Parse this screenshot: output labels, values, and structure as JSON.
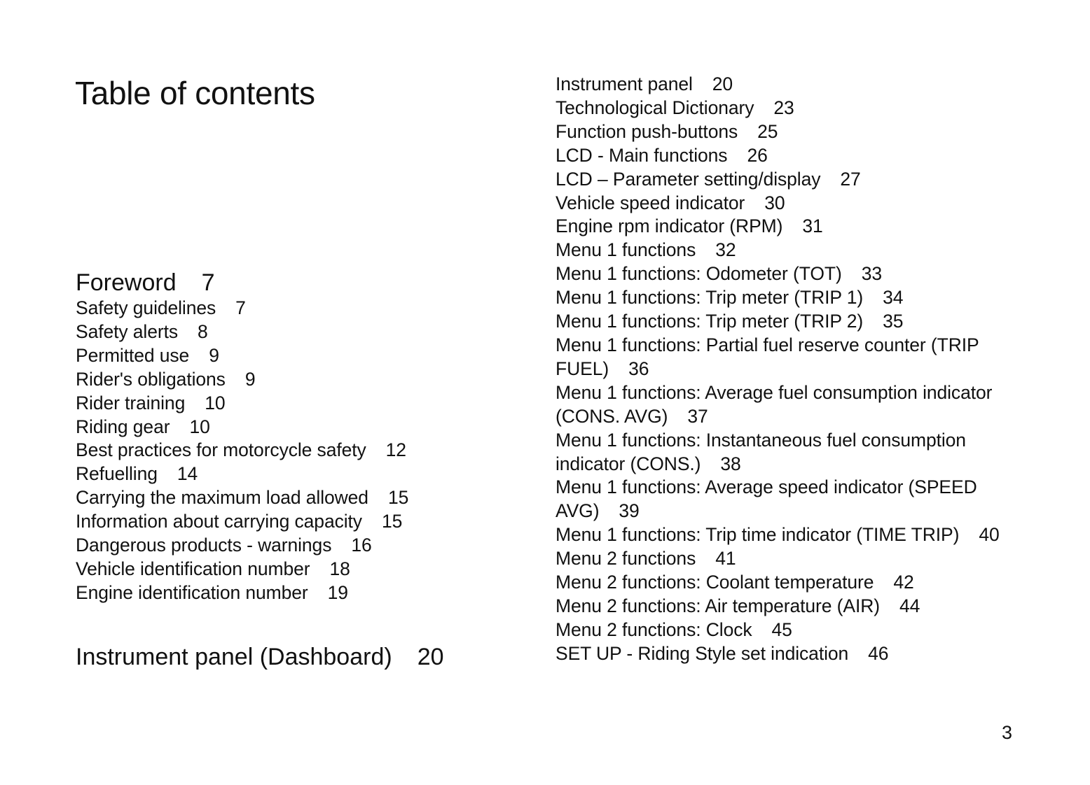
{
  "title": "Table of contents",
  "left": {
    "section1": {
      "title": "Foreword",
      "page": "7"
    },
    "entries": [
      {
        "title": "Safety guidelines",
        "page": "7"
      },
      {
        "title": "Safety alerts",
        "page": "8"
      },
      {
        "title": "Permitted use",
        "page": "9"
      },
      {
        "title": "Rider's obligations",
        "page": "9"
      },
      {
        "title": "Rider training",
        "page": "10"
      },
      {
        "title": "Riding gear",
        "page": "10"
      },
      {
        "title": "Best practices for motorcycle safety",
        "page": "12"
      },
      {
        "title": "Refuelling",
        "page": "14"
      },
      {
        "title": "Carrying the maximum load allowed",
        "page": "15"
      },
      {
        "title": "Information about carrying capacity",
        "page": "15"
      },
      {
        "title": "Dangerous products - warnings",
        "page": "16"
      },
      {
        "title": "Vehicle identification number",
        "page": "18"
      },
      {
        "title": "Engine identification number",
        "page": "19"
      }
    ],
    "section2": {
      "title": "Instrument panel (Dashboard)",
      "page": "20"
    }
  },
  "right": {
    "entries": [
      {
        "title": "Instrument panel",
        "page": "20"
      },
      {
        "title": "Technological Dictionary",
        "page": "23"
      },
      {
        "title": "Function push-buttons",
        "page": "25"
      },
      {
        "title": "LCD - Main functions",
        "page": "26"
      },
      {
        "title": "LCD – Parameter setting/display",
        "page": "27"
      },
      {
        "title": "Vehicle speed indicator",
        "page": "30"
      },
      {
        "title": "Engine rpm indicator (RPM)",
        "page": "31"
      },
      {
        "title": "Menu 1 functions",
        "page": "32"
      },
      {
        "title": "Menu 1 functions: Odometer (TOT)",
        "page": "33"
      },
      {
        "title": "Menu 1 functions: Trip meter (TRIP 1)",
        "page": "34"
      },
      {
        "title": "Menu 1 functions: Trip meter (TRIP 2)",
        "page": "35"
      },
      {
        "title": "Menu 1 functions: Partial fuel reserve counter (TRIP FUEL)",
        "page": "36"
      },
      {
        "title": "Menu 1 functions: Average fuel consumption indicator (CONS. AVG)",
        "page": "37"
      },
      {
        "title": "Menu 1 functions: Instantaneous fuel consumption indicator (CONS.)",
        "page": "38"
      },
      {
        "title": "Menu 1 functions: Average speed indicator (SPEED AVG)",
        "page": "39"
      },
      {
        "title": "Menu 1 functions: Trip time indicator (TIME TRIP)",
        "page": "40"
      },
      {
        "title": "Menu 2 functions",
        "page": "41"
      },
      {
        "title": "Menu 2 functions: Coolant temperature",
        "page": "42"
      },
      {
        "title": "Menu 2 functions: Air temperature (AIR)",
        "page": "44"
      },
      {
        "title": "Menu 2 functions: Clock",
        "page": "45"
      },
      {
        "title": "SET UP - Riding Style set indication",
        "page": "46"
      }
    ]
  },
  "page_number": "3"
}
